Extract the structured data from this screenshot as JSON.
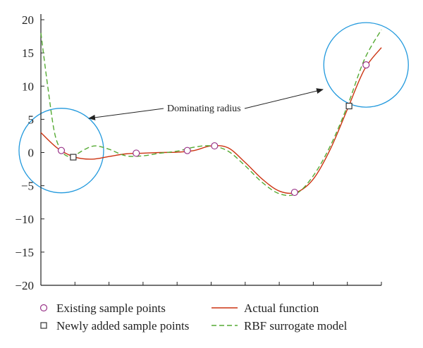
{
  "chart_data": {
    "type": "line",
    "title": "",
    "xlabel": "",
    "ylabel": "",
    "ylim": [
      -20,
      20
    ],
    "y_ticks": [
      20,
      15,
      10,
      5,
      0,
      -5,
      -10,
      -15,
      -20
    ],
    "y_tick_labels": [
      "20",
      "15",
      "10",
      "5",
      "0",
      "−5",
      "−10",
      "−15",
      "−20"
    ],
    "x_tick_count": 10,
    "grid": false,
    "legend_position": "bottom",
    "series": [
      {
        "name": "Actual function",
        "style": "solid",
        "color": "#cc3311",
        "x": [
          0,
          0.05,
          0.1,
          0.15,
          0.2,
          0.25,
          0.3,
          0.35,
          0.4,
          0.45,
          0.5,
          0.55,
          0.6,
          0.65,
          0.7,
          0.75,
          0.8,
          0.85,
          0.9,
          0.95,
          1
        ],
        "y": [
          3,
          0.6,
          -0.7,
          -1,
          -0.6,
          -0.2,
          -0.1,
          0,
          0.05,
          0.3,
          1,
          0.7,
          -1.5,
          -4,
          -5.8,
          -6,
          -4,
          0.5,
          6.5,
          12.5,
          15.8
        ]
      },
      {
        "name": "RBF surrogate model",
        "style": "dashed",
        "color": "#55aa33",
        "x": [
          0,
          0.02,
          0.04,
          0.06,
          0.08,
          0.1,
          0.13,
          0.16,
          0.2,
          0.25,
          0.3,
          0.35,
          0.4,
          0.45,
          0.5,
          0.55,
          0.6,
          0.65,
          0.7,
          0.75,
          0.8,
          0.85,
          0.9,
          0.95,
          1
        ],
        "y": [
          18,
          10,
          3,
          0.3,
          -0.6,
          -0.4,
          0.5,
          1,
          0.5,
          -0.5,
          -0.5,
          -0.1,
          0.2,
          0.8,
          1,
          0.2,
          -2,
          -4.5,
          -6.2,
          -6.2,
          -3.5,
          1,
          7,
          14,
          18.5
        ]
      }
    ],
    "markers": [
      {
        "name": "Existing sample points",
        "shape": "circle",
        "color": "#993388",
        "points": [
          [
            0.06,
            0.3
          ],
          [
            0.28,
            -0.1
          ],
          [
            0.43,
            0.3
          ],
          [
            0.51,
            1
          ],
          [
            0.745,
            -6
          ],
          [
            0.955,
            13.2
          ]
        ]
      },
      {
        "name": "Newly added sample points",
        "shape": "square",
        "color": "#333333",
        "points": [
          [
            0.095,
            -0.7
          ],
          [
            0.905,
            7
          ]
        ]
      }
    ],
    "regions": [
      {
        "shape": "circle",
        "color": "#2299dd",
        "center": [
          0.06,
          0.3
        ]
      },
      {
        "shape": "circle",
        "color": "#2299dd",
        "center": [
          0.955,
          13.2
        ]
      }
    ],
    "annotations": [
      {
        "text": "Dominating radius"
      }
    ],
    "legend": [
      {
        "label": "Existing sample points",
        "symbol": "circle"
      },
      {
        "label": "Actual function",
        "symbol": "solid-line"
      },
      {
        "label": "Newly added sample points",
        "symbol": "square"
      },
      {
        "label": "RBF surrogate model",
        "symbol": "dashed-line"
      }
    ]
  },
  "colors": {
    "actual": "#cc3311",
    "surrogate": "#55aa33",
    "existing": "#993388",
    "newly": "#333333",
    "radius": "#2299dd",
    "axis": "#222222"
  }
}
